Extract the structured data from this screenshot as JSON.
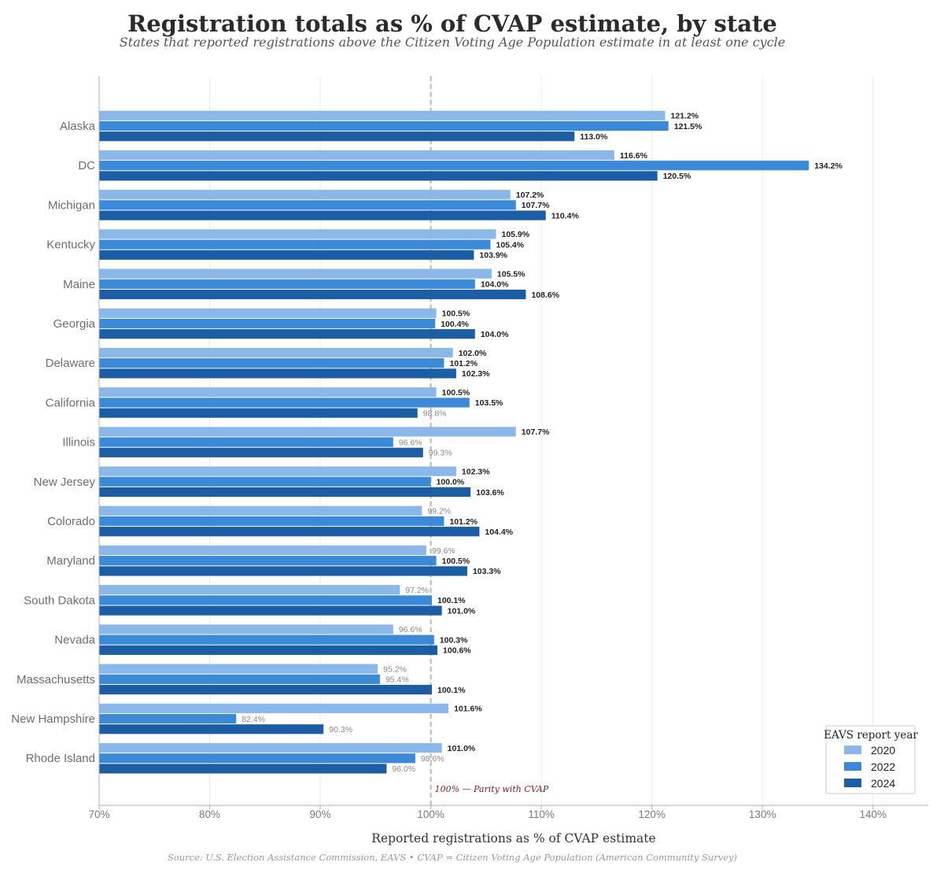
{
  "chart_data": {
    "type": "bar",
    "orientation": "horizontal",
    "title": "Registration totals as % of CVAP estimate, by state",
    "subtitle": "States that reported registrations above the Citizen Voting Age Population estimate in at least one cycle",
    "xlabel": "Reported registrations as % of CVAP estimate",
    "source": "Source: U.S. Election Assistance Commission, EAVS  •  CVAP = Citizen Voting Age Population (American Community Survey)",
    "xlim": [
      70,
      145
    ],
    "xticks": [
      70,
      80,
      90,
      100,
      110,
      120,
      130,
      140
    ],
    "tick_suffix": "%",
    "grid": "vertical",
    "reference_line": {
      "value": 100,
      "label": "100% — Parity with CVAP"
    },
    "legend": {
      "title": "EAVS report year",
      "position": "bottom-right"
    },
    "categories": [
      "Alaska",
      "DC",
      "Michigan",
      "Kentucky",
      "Maine",
      "Georgia",
      "Delaware",
      "California",
      "Illinois",
      "New Jersey",
      "Colorado",
      "Maryland",
      "South Dakota",
      "Nevada",
      "Massachusetts",
      "New Hampshire",
      "Rhode Island"
    ],
    "series": [
      {
        "name": "2020",
        "color": "#8ab8ea",
        "values": [
          121.2,
          116.6,
          107.2,
          105.9,
          105.5,
          100.5,
          102.0,
          100.5,
          107.7,
          102.3,
          99.2,
          99.6,
          97.2,
          96.6,
          95.2,
          101.6,
          101.0
        ]
      },
      {
        "name": "2022",
        "color": "#3a8ad9",
        "values": [
          121.5,
          134.2,
          107.7,
          105.4,
          104.0,
          100.4,
          101.2,
          103.5,
          96.6,
          100.0,
          101.2,
          100.5,
          100.1,
          100.3,
          95.4,
          82.4,
          98.6
        ]
      },
      {
        "name": "2024",
        "color": "#1b5ea6",
        "values": [
          113.0,
          120.5,
          110.4,
          103.9,
          108.6,
          104.0,
          102.3,
          98.8,
          99.3,
          103.6,
          104.4,
          103.3,
          101.0,
          100.6,
          100.1,
          90.3,
          96.0
        ]
      }
    ]
  }
}
